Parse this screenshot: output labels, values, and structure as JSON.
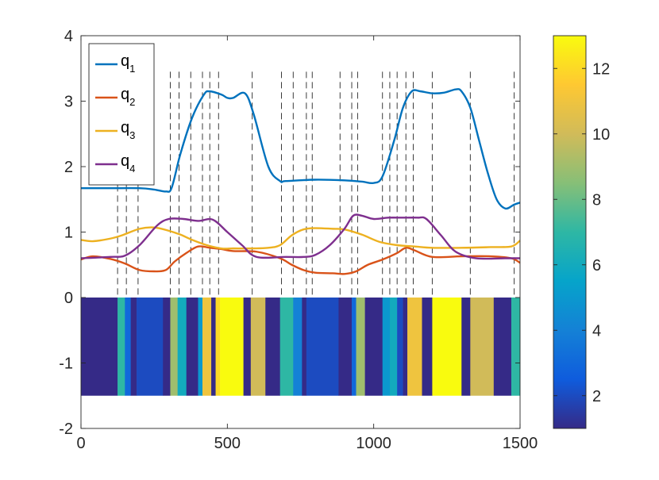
{
  "chart_data": {
    "type": "line",
    "xlim": [
      0,
      1500
    ],
    "ylim": [
      -2,
      4
    ],
    "x_ticks": [
      "0",
      "500",
      "1000",
      "1500"
    ],
    "y_ticks": [
      "-2",
      "-1",
      "0",
      "1",
      "2",
      "3",
      "4"
    ],
    "grid": false,
    "legend_position": "top-left",
    "series": [
      {
        "name": "q",
        "name_sub": "1",
        "color": "#0072BD",
        "points": [
          [
            0,
            1.67
          ],
          [
            100,
            1.67
          ],
          [
            200,
            1.67
          ],
          [
            250,
            1.65
          ],
          [
            290,
            1.62
          ],
          [
            310,
            1.68
          ],
          [
            340,
            2.2
          ],
          [
            380,
            2.75
          ],
          [
            420,
            3.1
          ],
          [
            440,
            3.15
          ],
          [
            480,
            3.1
          ],
          [
            500,
            3.05
          ],
          [
            520,
            3.05
          ],
          [
            560,
            3.12
          ],
          [
            590,
            2.8
          ],
          [
            640,
            2.0
          ],
          [
            680,
            1.78
          ],
          [
            700,
            1.78
          ],
          [
            800,
            1.8
          ],
          [
            900,
            1.79
          ],
          [
            960,
            1.77
          ],
          [
            1000,
            1.75
          ],
          [
            1030,
            1.85
          ],
          [
            1070,
            2.4
          ],
          [
            1100,
            2.9
          ],
          [
            1130,
            3.15
          ],
          [
            1160,
            3.15
          ],
          [
            1200,
            3.12
          ],
          [
            1240,
            3.13
          ],
          [
            1280,
            3.18
          ],
          [
            1300,
            3.15
          ],
          [
            1330,
            2.9
          ],
          [
            1360,
            2.4
          ],
          [
            1390,
            1.9
          ],
          [
            1420,
            1.5
          ],
          [
            1450,
            1.36
          ],
          [
            1480,
            1.42
          ],
          [
            1500,
            1.45
          ]
        ]
      },
      {
        "name": "q",
        "name_sub": "2",
        "color": "#D95319",
        "points": [
          [
            0,
            0.58
          ],
          [
            40,
            0.63
          ],
          [
            100,
            0.59
          ],
          [
            150,
            0.52
          ],
          [
            200,
            0.42
          ],
          [
            250,
            0.4
          ],
          [
            290,
            0.42
          ],
          [
            320,
            0.55
          ],
          [
            360,
            0.68
          ],
          [
            400,
            0.78
          ],
          [
            440,
            0.76
          ],
          [
            480,
            0.74
          ],
          [
            520,
            0.71
          ],
          [
            600,
            0.7
          ],
          [
            680,
            0.6
          ],
          [
            720,
            0.5
          ],
          [
            760,
            0.42
          ],
          [
            800,
            0.38
          ],
          [
            860,
            0.37
          ],
          [
            900,
            0.36
          ],
          [
            940,
            0.4
          ],
          [
            980,
            0.5
          ],
          [
            1030,
            0.58
          ],
          [
            1080,
            0.68
          ],
          [
            1110,
            0.76
          ],
          [
            1140,
            0.72
          ],
          [
            1200,
            0.62
          ],
          [
            1300,
            0.63
          ],
          [
            1400,
            0.63
          ],
          [
            1470,
            0.6
          ],
          [
            1500,
            0.53
          ]
        ]
      },
      {
        "name": "q",
        "name_sub": "3",
        "color": "#EDB120",
        "points": [
          [
            0,
            0.88
          ],
          [
            40,
            0.86
          ],
          [
            100,
            0.9
          ],
          [
            140,
            0.95
          ],
          [
            200,
            1.05
          ],
          [
            250,
            1.07
          ],
          [
            300,
            1.02
          ],
          [
            340,
            0.96
          ],
          [
            380,
            0.88
          ],
          [
            430,
            0.8
          ],
          [
            480,
            0.75
          ],
          [
            520,
            0.75
          ],
          [
            580,
            0.75
          ],
          [
            640,
            0.76
          ],
          [
            680,
            0.8
          ],
          [
            720,
            0.95
          ],
          [
            760,
            1.04
          ],
          [
            800,
            1.06
          ],
          [
            860,
            1.05
          ],
          [
            900,
            1.04
          ],
          [
            960,
            0.96
          ],
          [
            1020,
            0.85
          ],
          [
            1080,
            0.8
          ],
          [
            1140,
            0.78
          ],
          [
            1200,
            0.76
          ],
          [
            1300,
            0.76
          ],
          [
            1400,
            0.77
          ],
          [
            1470,
            0.78
          ],
          [
            1500,
            0.87
          ]
        ]
      },
      {
        "name": "q",
        "name_sub": "4",
        "color": "#7E2F8E",
        "points": [
          [
            0,
            0.6
          ],
          [
            100,
            0.62
          ],
          [
            150,
            0.64
          ],
          [
            200,
            0.8
          ],
          [
            260,
            1.1
          ],
          [
            300,
            1.2
          ],
          [
            350,
            1.2
          ],
          [
            400,
            1.17
          ],
          [
            450,
            1.19
          ],
          [
            500,
            1.0
          ],
          [
            550,
            0.8
          ],
          [
            600,
            0.62
          ],
          [
            700,
            0.62
          ],
          [
            760,
            0.62
          ],
          [
            800,
            0.65
          ],
          [
            850,
            0.8
          ],
          [
            900,
            1.05
          ],
          [
            930,
            1.25
          ],
          [
            960,
            1.25
          ],
          [
            1000,
            1.2
          ],
          [
            1050,
            1.22
          ],
          [
            1100,
            1.22
          ],
          [
            1150,
            1.22
          ],
          [
            1180,
            1.2
          ],
          [
            1230,
            0.95
          ],
          [
            1280,
            0.7
          ],
          [
            1350,
            0.6
          ],
          [
            1450,
            0.6
          ],
          [
            1500,
            0.6
          ]
        ]
      }
    ],
    "segment_lines_x": [
      125,
      155,
      195,
      305,
      335,
      375,
      415,
      440,
      470,
      585,
      685,
      725,
      770,
      790,
      885,
      925,
      945,
      1030,
      1055,
      1080,
      1110,
      1135,
      1200,
      1330,
      1480
    ],
    "segment_bar": {
      "y_range": [
        -1.5,
        0
      ],
      "segments": [
        [
          0,
          125,
          1
        ],
        [
          125,
          150,
          7
        ],
        [
          150,
          170,
          3
        ],
        [
          170,
          190,
          1
        ],
        [
          190,
          280,
          2
        ],
        [
          280,
          305,
          1
        ],
        [
          305,
          330,
          9
        ],
        [
          330,
          360,
          6
        ],
        [
          360,
          400,
          1
        ],
        [
          400,
          415,
          5
        ],
        [
          415,
          445,
          11
        ],
        [
          445,
          460,
          1
        ],
        [
          460,
          475,
          12
        ],
        [
          475,
          555,
          13
        ],
        [
          555,
          580,
          1
        ],
        [
          580,
          630,
          10
        ],
        [
          630,
          680,
          1
        ],
        [
          680,
          725,
          7
        ],
        [
          725,
          755,
          4
        ],
        [
          755,
          770,
          1
        ],
        [
          770,
          880,
          2
        ],
        [
          880,
          925,
          1
        ],
        [
          925,
          940,
          3
        ],
        [
          940,
          970,
          9
        ],
        [
          970,
          1030,
          1
        ],
        [
          1030,
          1055,
          5
        ],
        [
          1055,
          1080,
          6
        ],
        [
          1080,
          1100,
          2
        ],
        [
          1100,
          1115,
          1
        ],
        [
          1115,
          1165,
          11
        ],
        [
          1165,
          1200,
          1
        ],
        [
          1200,
          1300,
          13
        ],
        [
          1300,
          1330,
          1
        ],
        [
          1330,
          1410,
          10
        ],
        [
          1410,
          1470,
          1
        ],
        [
          1470,
          1500,
          7
        ]
      ]
    },
    "colorbar": {
      "range": [
        1,
        13
      ],
      "ticks": [
        "2",
        "4",
        "6",
        "8",
        "10",
        "12"
      ],
      "colormap": [
        "#352A87",
        "#0F5CDD",
        "#1481D6",
        "#06A4CA",
        "#2EB7A4",
        "#87BF77",
        "#D1BB59",
        "#FEC832",
        "#F9FB0E"
      ]
    }
  }
}
